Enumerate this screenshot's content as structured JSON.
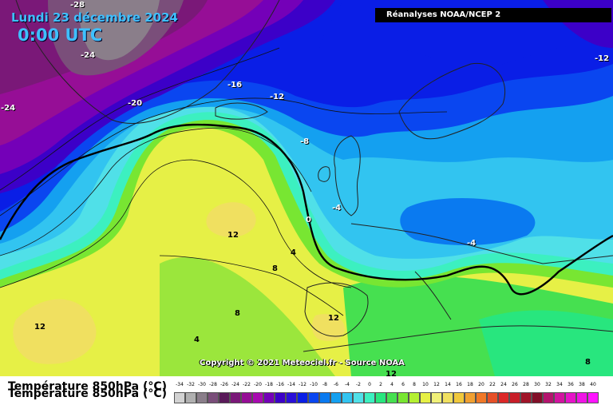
{
  "header": {
    "date": "Lundi 23 décembre 2024",
    "time": "0:00 UTC",
    "source": "Réanalyses NOAA/NCEP 2"
  },
  "copyright": "Copyright © 2021 Meteociel.fr - Source NOAA",
  "footer": {
    "title": "Température 850hPa (°C)"
  },
  "legend": {
    "ticks": [
      "-34",
      "-32",
      "-30",
      "-28",
      "-26",
      "-24",
      "-22",
      "-20",
      "-18",
      "-16",
      "-14",
      "-12",
      "-10",
      "-8",
      "-6",
      "-4",
      "-2",
      "0",
      "2",
      "4",
      "6",
      "8",
      "10",
      "12",
      "14",
      "16",
      "18",
      "20",
      "22",
      "24",
      "26",
      "28",
      "30",
      "32",
      "34",
      "36",
      "38",
      "40"
    ],
    "colors": [
      "#d2d2d2",
      "#b0b0b0",
      "#8a7e8a",
      "#7a4e7a",
      "#5a1a5a",
      "#7a1878",
      "#960e96",
      "#a80ab0",
      "#7400b8",
      "#3c00c8",
      "#2a10d8",
      "#0a1ee6",
      "#0a46f0",
      "#0a7af0",
      "#14a0f0",
      "#32c4f0",
      "#50e0e8",
      "#3cf0c0",
      "#28e67e",
      "#46e050",
      "#78e632",
      "#b4f032",
      "#e6f046",
      "#f0f078",
      "#f0e060",
      "#f0c83c",
      "#f0a032",
      "#f07828",
      "#e65028",
      "#dc2828",
      "#c81e28",
      "#a01428",
      "#820f28",
      "#b4146e",
      "#d214a0",
      "#e614c8",
      "#f014e6",
      "#ff14ff"
    ]
  },
  "map_labels": [
    {
      "text": "-28",
      "tone": "light"
    },
    {
      "text": "-24",
      "tone": "light"
    },
    {
      "text": "-24",
      "tone": "light"
    },
    {
      "text": "-20",
      "tone": "light"
    },
    {
      "text": "-16",
      "tone": "light"
    },
    {
      "text": "-12",
      "tone": "light"
    },
    {
      "text": "-12",
      "tone": "light"
    },
    {
      "text": "-8",
      "tone": "light"
    },
    {
      "text": "-4",
      "tone": "light"
    },
    {
      "text": "-4",
      "tone": "light"
    },
    {
      "text": "0",
      "tone": "light"
    },
    {
      "text": "4",
      "tone": "dark"
    },
    {
      "text": "8",
      "tone": "dark"
    },
    {
      "text": "12",
      "tone": "dark"
    },
    {
      "text": "8",
      "tone": "dark"
    },
    {
      "text": "4",
      "tone": "dark"
    },
    {
      "text": "12",
      "tone": "dark"
    },
    {
      "text": "12",
      "tone": "dark"
    },
    {
      "text": "12",
      "tone": "dark"
    },
    {
      "text": "8",
      "tone": "dark"
    }
  ]
}
